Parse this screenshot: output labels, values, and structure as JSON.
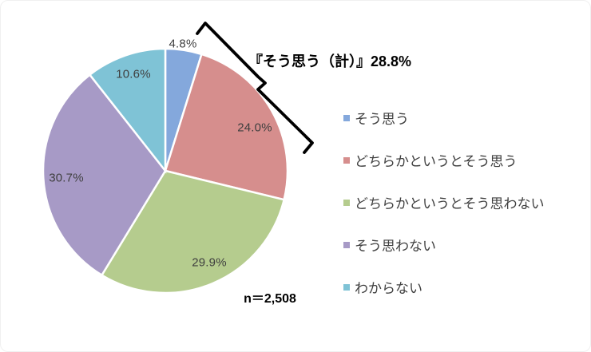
{
  "chart_data": {
    "type": "pie",
    "categories": [
      "そう思う",
      "どちらかというとそう思う",
      "どちらかというとそう思わない",
      "そう思わない",
      "わからない"
    ],
    "values": [
      4.8,
      24.0,
      29.9,
      30.7,
      10.6
    ],
    "labels": [
      "4.8%",
      "24.0%",
      "29.9%",
      "30.7%",
      "10.6%"
    ],
    "colors": [
      "#84A8DC",
      "#D68E8D",
      "#B5CC8E",
      "#A79AC6",
      "#7FC3D6"
    ],
    "annotation": "『そう思う（計）』28.8%",
    "annotation_value": "28.8%",
    "n_label": "n＝2,508",
    "start_angle_deg": 0,
    "direction": "clockwise",
    "legend_position": "right",
    "slice_border_color": "#ffffff"
  }
}
